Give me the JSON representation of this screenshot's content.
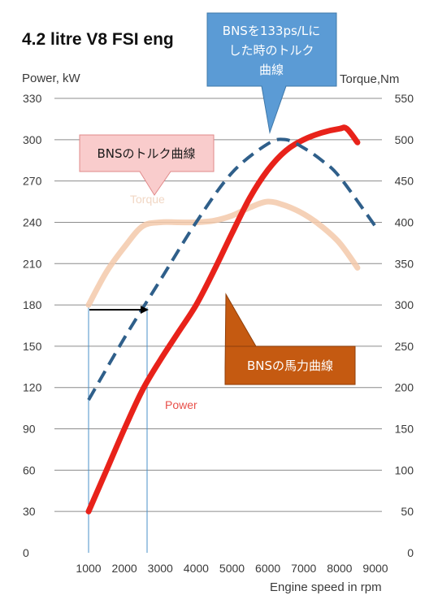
{
  "chart_data": {
    "type": "line",
    "title": "4.2 litre V8 FSI eng",
    "xlabel": "Engine speed in rpm",
    "ylabel_left": "Power, kW",
    "ylabel_right": "Torque,Nm",
    "xlim": [
      1000,
      9000
    ],
    "ylim_left": [
      0,
      330
    ],
    "ylim_right": [
      0,
      550
    ],
    "x_ticks": [
      1000,
      2000,
      3000,
      4000,
      5000,
      6000,
      7000,
      8000,
      9000
    ],
    "y_ticks_left": [
      0,
      30,
      60,
      90,
      120,
      150,
      180,
      210,
      240,
      270,
      300,
      330
    ],
    "y_ticks_right": [
      0,
      50,
      100,
      150,
      200,
      250,
      300,
      350,
      400,
      450,
      500,
      550
    ],
    "grid": "horizontal",
    "series": [
      {
        "name": "Torque",
        "axis": "right",
        "color": "#f3c9aa",
        "style": "solid-thick",
        "x": [
          1000,
          1500,
          2000,
          2500,
          3000,
          3500,
          4000,
          4500,
          5000,
          5500,
          6000,
          6500,
          7000,
          7500,
          8000,
          8500
        ],
        "y": [
          300,
          340,
          370,
          395,
          400,
          400,
          400,
          402,
          408,
          418,
          425,
          420,
          410,
          395,
          375,
          345
        ]
      },
      {
        "name": "Power",
        "axis": "left",
        "color": "#e8221a",
        "style": "solid-bold",
        "x": [
          1000,
          1500,
          2000,
          2500,
          3000,
          3500,
          4000,
          4500,
          5000,
          5500,
          6000,
          6500,
          7000,
          7500,
          8000,
          8200,
          8500
        ],
        "y": [
          30,
          60,
          90,
          118,
          140,
          160,
          180,
          205,
          232,
          258,
          278,
          292,
          300,
          305,
          308,
          308,
          298
        ]
      },
      {
        "axis": "right",
        "color": "#2f5f8a",
        "style": "dashed",
        "x": [
          1000,
          2000,
          3000,
          4000,
          5000,
          6000,
          6500,
          7000,
          7500,
          8000,
          9000
        ],
        "y": [
          185,
          260,
          330,
          400,
          460,
          495,
          500,
          490,
          475,
          455,
          395
        ]
      }
    ],
    "annotations": {
      "torque_inline_label": "Torque",
      "power_inline_label": "Power",
      "callouts": [
        {
          "text": "BNSを133ps/Lにした時のトルク曲線",
          "lines": [
            "BNSを133ps/Lに",
            "した時のトルク",
            "曲線"
          ],
          "fill": "#5b9bd5",
          "text_color": "#ffffff"
        },
        {
          "text": "BNSのトルク曲線",
          "lines": [
            "BNSのトルク曲線"
          ],
          "fill": "#f9cccc",
          "text_color": "#1a1a1a"
        },
        {
          "text": "BNSの馬力曲線",
          "lines": [
            "BNSの馬力曲線"
          ],
          "fill": "#c55a11",
          "text_color": "#ffffff"
        }
      ],
      "shift_arrow": {
        "from_rpm": 1000,
        "to_rpm": 2700,
        "at_torque": 300
      }
    }
  }
}
